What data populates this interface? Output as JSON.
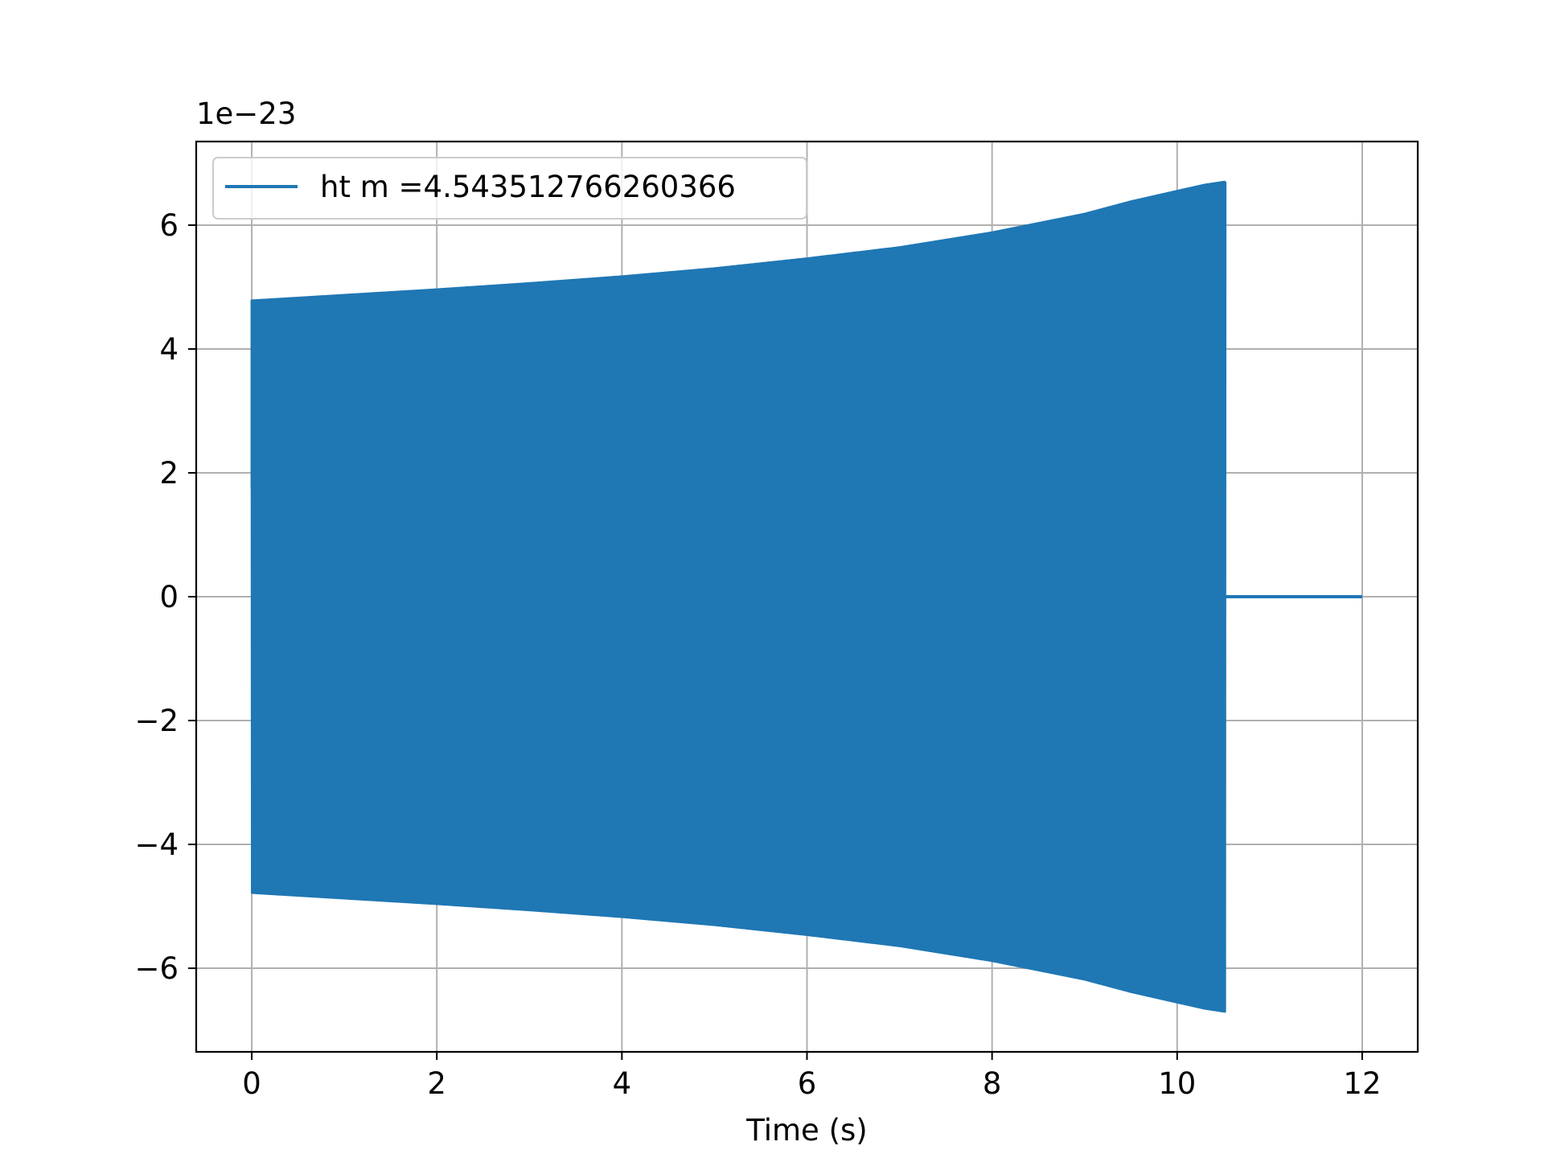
{
  "chart_data": {
    "type": "line",
    "title": "",
    "xlabel": "Time (s)",
    "ylabel": "",
    "y_offset_label": "1e−23",
    "y_scale_exponent": -23,
    "xlim": [
      -0.6,
      12.6
    ],
    "ylim": [
      -7.35,
      7.35
    ],
    "xticks": [
      0,
      2,
      4,
      6,
      8,
      10,
      12
    ],
    "xtick_labels": [
      "0",
      "2",
      "4",
      "6",
      "8",
      "10",
      "12"
    ],
    "yticks": [
      -6,
      -4,
      -2,
      0,
      2,
      4,
      6
    ],
    "ytick_labels": [
      "−6",
      "−4",
      "−2",
      "0",
      "2",
      "4",
      "6"
    ],
    "grid": true,
    "legend_position": "upper-left",
    "series": [
      {
        "name": "ht m =4.543512766260366",
        "color": "#1f77b4",
        "description_type": "oscillating signal with growing amplitude envelope",
        "envelope": {
          "x": [
            0,
            1,
            2,
            3,
            4,
            5,
            6,
            7,
            8,
            9,
            9.5,
            10,
            10.3,
            10.52
          ],
          "amplitude": [
            4.78,
            4.87,
            4.96,
            5.06,
            5.17,
            5.3,
            5.46,
            5.64,
            5.88,
            6.18,
            6.38,
            6.55,
            6.65,
            6.7
          ]
        },
        "flat_segment": {
          "x": [
            10.55,
            12.0
          ],
          "y": 0
        },
        "start_value": 1.75,
        "end_x": 10.52
      }
    ]
  }
}
